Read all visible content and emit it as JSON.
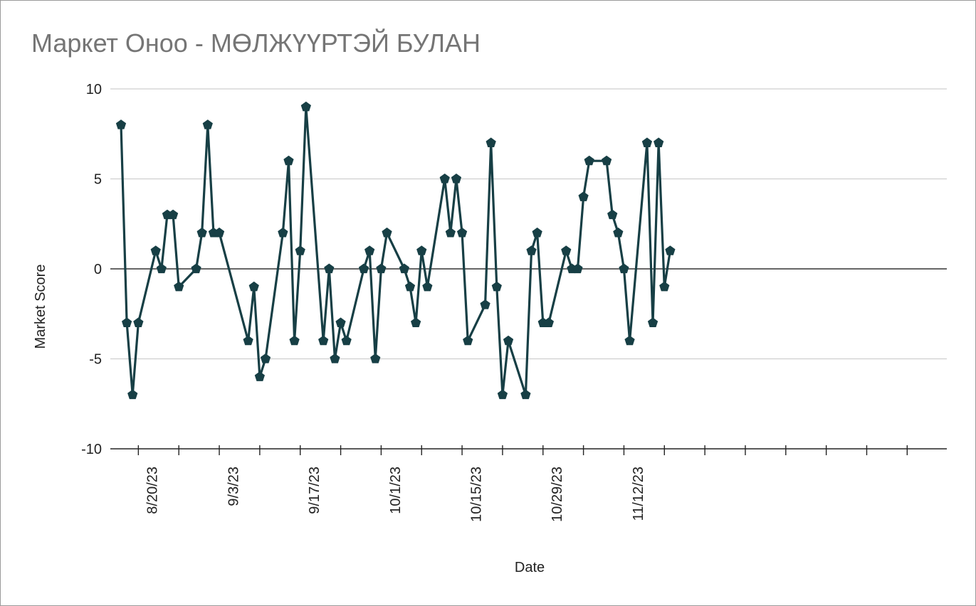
{
  "chart_data": {
    "type": "line",
    "title": "Маркет Оноо - МӨЛЖҮҮРТЭЙ БУЛАН",
    "xlabel": "Date",
    "ylabel": "Market Score",
    "ylim": [
      -10,
      10
    ],
    "yticks": [
      "10",
      "5",
      "0",
      "-5",
      "-10"
    ],
    "xticks": [
      {
        "date": "2023-08-20",
        "label": "8/20/23"
      },
      {
        "date": "2023-09-03",
        "label": "9/3/23"
      },
      {
        "date": "2023-09-17",
        "label": "9/17/23"
      },
      {
        "date": "2023-10-01",
        "label": "10/1/23"
      },
      {
        "date": "2023-10-15",
        "label": "10/15/23"
      },
      {
        "date": "2023-10-29",
        "label": "10/29/23"
      },
      {
        "date": "2023-11-12",
        "label": "11/12/23"
      }
    ],
    "grid": true,
    "colors": {
      "line": "#173f45",
      "grid": "#cfcfcf",
      "zero_line": "#333333"
    },
    "series": [
      {
        "x": [
          "2023-08-14",
          "2023-08-15",
          "2023-08-16",
          "2023-08-17",
          "2023-08-20",
          "2023-08-21",
          "2023-08-22",
          "2023-08-23",
          "2023-08-24",
          "2023-08-27",
          "2023-08-28",
          "2023-08-29",
          "2023-08-30",
          "2023-08-31",
          "2023-09-05",
          "2023-09-06",
          "2023-09-07",
          "2023-09-08",
          "2023-09-11",
          "2023-09-12",
          "2023-09-13",
          "2023-09-14",
          "2023-09-15",
          "2023-09-18",
          "2023-09-19",
          "2023-09-20",
          "2023-09-21",
          "2023-09-22",
          "2023-09-25",
          "2023-09-26",
          "2023-09-27",
          "2023-09-28",
          "2023-09-29",
          "2023-10-02",
          "2023-10-03",
          "2023-10-04",
          "2023-10-05",
          "2023-10-06",
          "2023-10-09",
          "2023-10-10",
          "2023-10-11",
          "2023-10-12",
          "2023-10-13",
          "2023-10-16",
          "2023-10-17",
          "2023-10-18",
          "2023-10-19",
          "2023-10-20",
          "2023-10-23",
          "2023-10-24",
          "2023-10-25",
          "2023-10-26",
          "2023-10-27",
          "2023-10-30",
          "2023-10-31",
          "2023-11-01",
          "2023-11-02",
          "2023-11-03",
          "2023-11-06",
          "2023-11-07",
          "2023-11-08",
          "2023-11-09",
          "2023-11-10",
          "2023-11-13",
          "2023-11-14",
          "2023-11-15",
          "2023-11-16",
          "2023-11-17"
        ],
        "values": [
          8,
          -3,
          -7,
          -3,
          1,
          0,
          3,
          3,
          -1,
          0,
          2,
          8,
          2,
          2,
          -4,
          -1,
          -6,
          -5,
          2,
          6,
          -4,
          1,
          9,
          -4,
          0,
          -5,
          -3,
          -4,
          0,
          1,
          -5,
          0,
          2,
          0,
          -1,
          -3,
          1,
          -1,
          5,
          2,
          5,
          2,
          -4,
          -2,
          7,
          -1,
          -7,
          -4,
          -7,
          1,
          2,
          -3,
          -3,
          1,
          0,
          0,
          4,
          6,
          6,
          3,
          2,
          0,
          -4,
          7,
          -3,
          7,
          -1,
          1
        ]
      }
    ]
  }
}
